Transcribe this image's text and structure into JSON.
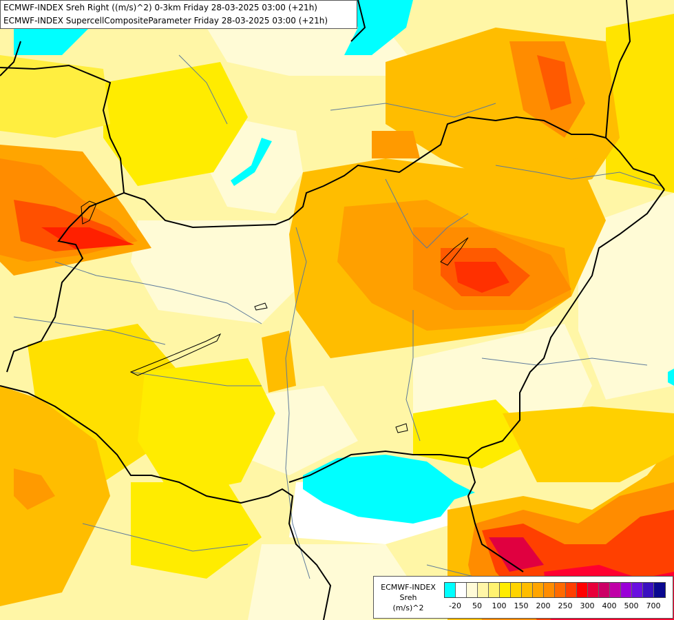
{
  "header": {
    "line1": "ECMWF-INDEX Sreh Right ((m/s)^2) 0-3km Friday 28-03-2025 03:00 (+21h)",
    "line2": "ECMWF-INDEX SupercellCompositeParameter Friday 28-03-2025 03:00 (+21h)"
  },
  "legend": {
    "model": "ECMWF-INDEX",
    "variable": "Sreh",
    "unit": "(m/s)^2",
    "colors": [
      "#00ffff",
      "#ffffff",
      "#fffbd8",
      "#fff6a8",
      "#fff270",
      "#ffec00",
      "#ffd400",
      "#ffbd00",
      "#ffa500",
      "#ff8c00",
      "#ff6a00",
      "#ff3f00",
      "#ff0000",
      "#e8003a",
      "#cc0066",
      "#c000a8",
      "#9a00d8",
      "#6a10e0",
      "#3a10c0",
      "#0a0890"
    ],
    "ticks": [
      "-20",
      "50",
      "100",
      "150",
      "200",
      "250",
      "300",
      "400",
      "500",
      "700"
    ]
  }
}
